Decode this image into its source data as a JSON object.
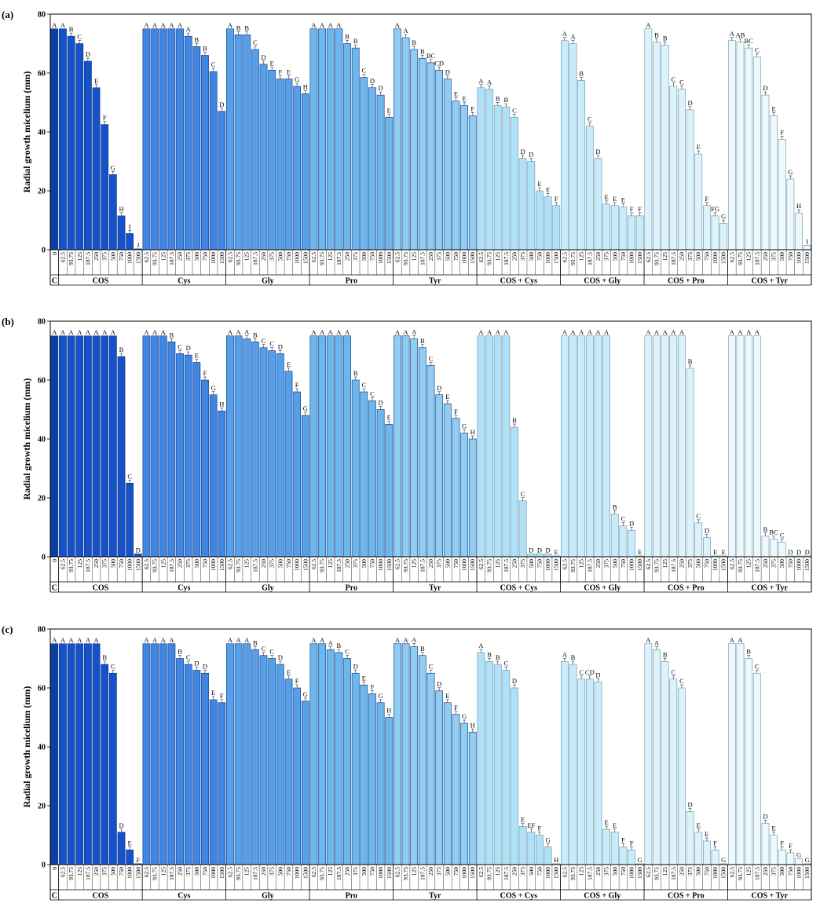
{
  "figure": {
    "ylabel": "Radial growth micelium (mm)",
    "colors": {
      "control": "#0b3fa6",
      "COS": "#1552c9",
      "Cys": "#3f86e3",
      "Gly": "#55a0ea",
      "Pro": "#6db7ef",
      "Tyr": "#8fcdf3",
      "COS + Cys": "#b1e1f7",
      "COS + Gly": "#c8ecf9",
      "COS + Pro": "#dcf3fb",
      "COS + Tyr": "#eef9fd"
    }
  },
  "chart_data": [
    {
      "type": "bar",
      "panel_label": "(a)",
      "ylabel": "Radial growth micelium (mm)",
      "ylim": [
        0,
        80
      ],
      "yticks": [
        0,
        20,
        40,
        60,
        80
      ],
      "groups": [
        {
          "name": "C",
          "x": [
            "0"
          ],
          "values": [
            75
          ],
          "letters": [
            "A"
          ]
        },
        {
          "name": "COS",
          "x": [
            "62.5",
            "93.75",
            "125",
            "187.5",
            "250",
            "375",
            "500",
            "750",
            "1000",
            "1500"
          ],
          "values": [
            75,
            72.5,
            70,
            64,
            55,
            42.5,
            25.5,
            11.5,
            5.5,
            0.3
          ],
          "letters": [
            "A",
            "B",
            "C",
            "D",
            "E",
            "F",
            "G",
            "H",
            "I",
            "J"
          ]
        },
        {
          "name": "Cys",
          "x": [
            "62.5",
            "93.75",
            "125",
            "187.5",
            "250",
            "375",
            "500",
            "750",
            "1000",
            "1500"
          ],
          "values": [
            75,
            75,
            75,
            75,
            75,
            72.5,
            69,
            66,
            60.5,
            47
          ],
          "letters": [
            "A",
            "A",
            "A",
            "A",
            "A",
            "A",
            "B",
            "B",
            "C",
            "D"
          ]
        },
        {
          "name": "Gly",
          "x": [
            "62.5",
            "93.75",
            "125",
            "187.5",
            "250",
            "375",
            "500",
            "750",
            "1000",
            "1500"
          ],
          "values": [
            75,
            73,
            73,
            68,
            63,
            61,
            58,
            58,
            55.5,
            53
          ],
          "letters": [
            "A",
            "B",
            "B",
            "C",
            "D",
            "E",
            "F",
            "E",
            "G",
            "H"
          ]
        },
        {
          "name": "Pro",
          "x": [
            "62.5",
            "93.75",
            "125",
            "187.5",
            "250",
            "375",
            "500",
            "750",
            "1000",
            "1500"
          ],
          "values": [
            75,
            75,
            75,
            75,
            70,
            68.5,
            58.5,
            55,
            52.5,
            45
          ],
          "letters": [
            "A",
            "A",
            "A",
            "A",
            "B",
            "B",
            "C",
            "D",
            "D",
            "E"
          ]
        },
        {
          "name": "Tyr",
          "x": [
            "62.5",
            "93.75",
            "125",
            "187.5",
            "250",
            "375",
            "500",
            "750",
            "1000",
            "1500"
          ],
          "values": [
            75,
            72,
            68,
            65,
            63.5,
            61,
            58,
            50.5,
            49,
            45.5
          ],
          "letters": [
            "A",
            "A",
            "B",
            "B",
            "BC",
            "CD",
            "D",
            "E",
            "E",
            "F"
          ]
        },
        {
          "name": "COS + Cys",
          "x": [
            "62.5",
            "93.75",
            "125",
            "187.5",
            "250",
            "375",
            "500",
            "750",
            "1000",
            "1500"
          ],
          "values": [
            55,
            54.5,
            49,
            48.5,
            45,
            31,
            30,
            20,
            18,
            15
          ],
          "letters": [
            "A",
            "A",
            "B",
            "B",
            "C",
            "D",
            "D",
            "E",
            "E",
            "F"
          ]
        },
        {
          "name": "COS + Gly",
          "x": [
            "62.5",
            "93.75",
            "125",
            "187.5",
            "250",
            "375",
            "500",
            "750",
            "1000",
            "1500"
          ],
          "values": [
            71,
            70,
            57.5,
            42,
            31,
            15.5,
            15,
            14.5,
            11.5,
            11.5
          ],
          "letters": [
            "A",
            "A",
            "B",
            "C",
            "D",
            "E",
            "E",
            "E",
            "F",
            "F"
          ]
        },
        {
          "name": "COS + Pro",
          "x": [
            "62.5",
            "93.75",
            "125",
            "187.5",
            "250",
            "375",
            "500",
            "750",
            "1000",
            "1500"
          ],
          "values": [
            75,
            70.5,
            69.5,
            55.5,
            54.5,
            47.5,
            32.5,
            15,
            11.5,
            9
          ],
          "letters": [
            "A",
            "B",
            "B",
            "C",
            "C",
            "D",
            "E",
            "F",
            "FG",
            "G"
          ]
        },
        {
          "name": "COS + Tyr",
          "x": [
            "62.5",
            "93.75",
            "125",
            "187.5",
            "250",
            "375",
            "500",
            "750",
            "1000",
            "1500"
          ],
          "values": [
            71,
            70.5,
            68.5,
            65.5,
            52.5,
            45.5,
            37.5,
            24,
            12.5,
            1.5
          ],
          "letters": [
            "A",
            "AB",
            "BC",
            "C",
            "D",
            "E",
            "F",
            "G",
            "H",
            "I"
          ]
        }
      ]
    },
    {
      "type": "bar",
      "panel_label": "(b)",
      "ylabel": "Radial growth micelium (mm)",
      "ylim": [
        0,
        80
      ],
      "yticks": [
        0,
        20,
        40,
        60,
        80
      ],
      "groups": [
        {
          "name": "C",
          "x": [
            "0"
          ],
          "values": [
            75
          ],
          "letters": [
            "A"
          ]
        },
        {
          "name": "COS",
          "x": [
            "62.5",
            "93.75",
            "125",
            "187.5",
            "250",
            "375",
            "500",
            "750",
            "1000",
            "1500"
          ],
          "values": [
            75,
            75,
            75,
            75,
            75,
            75,
            75,
            68,
            25,
            1
          ],
          "letters": [
            "A",
            "A",
            "A",
            "A",
            "A",
            "A",
            "A",
            "B",
            "C",
            "D"
          ]
        },
        {
          "name": "Cys",
          "x": [
            "62.5",
            "93.75",
            "125",
            "187.5",
            "250",
            "375",
            "500",
            "750",
            "1000",
            "1500"
          ],
          "values": [
            75,
            75,
            75,
            73,
            69,
            68.5,
            66,
            60,
            55,
            49.5
          ],
          "letters": [
            "A",
            "A",
            "A",
            "B",
            "C",
            "D",
            "E",
            "F",
            "G",
            "H"
          ]
        },
        {
          "name": "Gly",
          "x": [
            "62.5",
            "93.75",
            "125",
            "187.5",
            "250",
            "375",
            "500",
            "750",
            "1000",
            "1500"
          ],
          "values": [
            75,
            75,
            74,
            73,
            71,
            70,
            69,
            63,
            56,
            48
          ],
          "letters": [
            "A",
            "A",
            "A",
            "B",
            "C",
            "C",
            "D",
            "E",
            "F",
            "G"
          ]
        },
        {
          "name": "Pro",
          "x": [
            "62.5",
            "93.75",
            "125",
            "187.5",
            "250",
            "375",
            "500",
            "750",
            "1000",
            "1500"
          ],
          "values": [
            75,
            75,
            75,
            75,
            75,
            60,
            56,
            53,
            50,
            45
          ],
          "letters": [
            "A",
            "A",
            "A",
            "A",
            "A",
            "B",
            "C",
            "C",
            "D",
            "E"
          ]
        },
        {
          "name": "Tyr",
          "x": [
            "62.5",
            "93.75",
            "125",
            "187.5",
            "250",
            "375",
            "500",
            "750",
            "1000",
            "1500"
          ],
          "values": [
            75,
            75,
            74,
            71,
            65,
            55,
            52,
            47,
            42,
            40
          ],
          "letters": [
            "A",
            "A",
            "A",
            "B",
            "C",
            "D",
            "E",
            "F",
            "G",
            "H"
          ]
        },
        {
          "name": "COS + Cys",
          "x": [
            "62.5",
            "93.75",
            "125",
            "187.5",
            "250",
            "375",
            "500",
            "750",
            "1000",
            "1500"
          ],
          "values": [
            75,
            75,
            75,
            75,
            44,
            19,
            1,
            1,
            1,
            0.3
          ],
          "letters": [
            "A",
            "A",
            "A",
            "A",
            "B",
            "C",
            "D",
            "D",
            "D",
            "E"
          ]
        },
        {
          "name": "COS + Gly",
          "x": [
            "62.5",
            "93.75",
            "125",
            "187.5",
            "250",
            "375",
            "500",
            "750",
            "1000",
            "1500"
          ],
          "values": [
            75,
            75,
            75,
            75,
            75,
            75,
            14.5,
            10.5,
            9,
            0.3
          ],
          "letters": [
            "A",
            "A",
            "A",
            "A",
            "A",
            "A",
            "B",
            "C",
            "D",
            "E"
          ]
        },
        {
          "name": "COS + Pro",
          "x": [
            "62.5",
            "93.75",
            "125",
            "187.5",
            "250",
            "375",
            "500",
            "750",
            "1000",
            "1500"
          ],
          "values": [
            75,
            75,
            75,
            75,
            75,
            64,
            11.5,
            6.5,
            0.3,
            0.3
          ],
          "letters": [
            "A",
            "A",
            "A",
            "A",
            "A",
            "B",
            "C",
            "D",
            "E",
            "E"
          ]
        },
        {
          "name": "COS + Tyr",
          "x": [
            "62.5",
            "93.75",
            "125",
            "187.5",
            "250",
            "375",
            "500",
            "750",
            "1000",
            "1500"
          ],
          "values": [
            75,
            75,
            75,
            75,
            7,
            6,
            5,
            0.3,
            0.3,
            0.3
          ],
          "letters": [
            "A",
            "A",
            "A",
            "A",
            "B",
            "BC",
            "C",
            "D",
            "D",
            "D"
          ]
        }
      ]
    },
    {
      "type": "bar",
      "panel_label": "(c)",
      "ylabel": "Radial growth micelium (mm)",
      "ylim": [
        0,
        80
      ],
      "yticks": [
        0,
        20,
        40,
        60,
        80
      ],
      "groups": [
        {
          "name": "C",
          "x": [
            "0"
          ],
          "values": [
            75
          ],
          "letters": [
            "A"
          ]
        },
        {
          "name": "COS",
          "x": [
            "62.5",
            "93.75",
            "125",
            "187.5",
            "250",
            "375",
            "500",
            "750",
            "1000",
            "1500"
          ],
          "values": [
            75,
            75,
            75,
            75,
            75,
            68,
            65,
            11,
            5,
            0.3
          ],
          "letters": [
            "A",
            "A",
            "A",
            "A",
            "A",
            "B",
            "C",
            "D",
            "E",
            "F"
          ]
        },
        {
          "name": "Cys",
          "x": [
            "62.5",
            "93.75",
            "125",
            "187.5",
            "250",
            "375",
            "500",
            "750",
            "1000",
            "1500"
          ],
          "values": [
            75,
            75,
            75,
            75,
            70,
            68,
            66,
            65,
            56,
            55
          ],
          "letters": [
            "A",
            "A",
            "A",
            "A",
            "B",
            "C",
            "D",
            "D",
            "E",
            "F"
          ]
        },
        {
          "name": "Gly",
          "x": [
            "62.5",
            "93.75",
            "125",
            "187.5",
            "250",
            "375",
            "500",
            "750",
            "1000",
            "1500"
          ],
          "values": [
            75,
            75,
            75,
            73,
            71,
            70,
            68,
            63,
            60,
            55.5
          ],
          "letters": [
            "A",
            "A",
            "A",
            "B",
            "C",
            "C",
            "D",
            "E",
            "F",
            "G"
          ]
        },
        {
          "name": "Pro",
          "x": [
            "62.5",
            "93.75",
            "125",
            "187.5",
            "250",
            "375",
            "500",
            "750",
            "1000",
            "1500"
          ],
          "values": [
            75,
            75,
            73,
            72,
            70,
            65,
            61,
            58,
            55,
            50
          ],
          "letters": [
            "A",
            "A",
            "A",
            "B",
            "C",
            "D",
            "E",
            "F",
            "G",
            "H"
          ]
        },
        {
          "name": "Tyr",
          "x": [
            "62.5",
            "93.75",
            "125",
            "187.5",
            "250",
            "375",
            "500",
            "750",
            "1000",
            "1500"
          ],
          "values": [
            75,
            75,
            74,
            71,
            65,
            59,
            55,
            51,
            48,
            45
          ],
          "letters": [
            "A",
            "A",
            "A",
            "B",
            "C",
            "D",
            "E",
            "F",
            "G",
            "H"
          ]
        },
        {
          "name": "COS + Cys",
          "x": [
            "62.5",
            "93.75",
            "125",
            "187.5",
            "250",
            "375",
            "500",
            "750",
            "1000",
            "1500"
          ],
          "values": [
            72,
            69,
            68,
            66,
            60,
            13,
            11,
            10,
            6,
            0.3
          ],
          "letters": [
            "A",
            "B",
            "B",
            "C",
            "D",
            "E",
            "EF",
            "F",
            "G",
            "H"
          ]
        },
        {
          "name": "COS + Gly",
          "x": [
            "62.5",
            "93.75",
            "125",
            "187.5",
            "250",
            "375",
            "500",
            "750",
            "1000",
            "1500"
          ],
          "values": [
            69,
            68,
            63,
            63,
            62,
            12,
            11,
            6,
            5,
            0.3
          ],
          "letters": [
            "A",
            "B",
            "C",
            "CD",
            "D",
            "E",
            "E",
            "F",
            "F",
            "G"
          ]
        },
        {
          "name": "COS + Pro",
          "x": [
            "62.5",
            "93.75",
            "125",
            "187.5",
            "250",
            "375",
            "500",
            "750",
            "1000",
            "1500"
          ],
          "values": [
            75,
            73,
            69,
            63,
            60,
            18,
            11,
            8,
            5,
            0.3
          ],
          "letters": [
            "A",
            "A",
            "B",
            "C",
            "C",
            "D",
            "E",
            "E",
            "F",
            "G"
          ]
        },
        {
          "name": "COS + Tyr",
          "x": [
            "62.5",
            "93.75",
            "125",
            "187.5",
            "250",
            "375",
            "500",
            "750",
            "1000",
            "1500"
          ],
          "values": [
            75,
            75,
            70,
            65,
            14,
            10,
            5,
            4,
            2,
            0.3
          ],
          "letters": [
            "A",
            "A",
            "B",
            "C",
            "D",
            "E",
            "F",
            "F",
            "G",
            "G"
          ]
        }
      ]
    }
  ]
}
